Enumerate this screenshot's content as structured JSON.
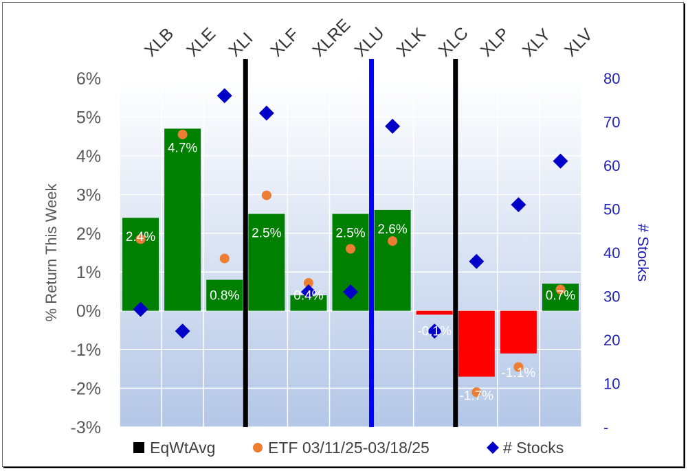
{
  "chart_data": {
    "type": "bar",
    "categories": [
      "XLB",
      "XLE",
      "XLI",
      "XLF",
      "XLRE",
      "XLU",
      "XLK",
      "XLC",
      "XLP",
      "XLY",
      "XLV"
    ],
    "series": [
      {
        "name": "EqWtAvg",
        "kind": "bar",
        "axis": "left",
        "values": [
          2.4,
          4.7,
          0.8,
          2.5,
          0.4,
          2.5,
          2.6,
          -0.1,
          -1.7,
          -1.1,
          0.7
        ],
        "labels": [
          "2.4%",
          "4.7%",
          "0.8%",
          "2.5%",
          "0.4%",
          "2.5%",
          "2.6%",
          "-0.1%",
          "-1.7%",
          "-1.1%",
          "0.7%"
        ],
        "color_positive": "#008000",
        "color_negative": "#ff0000"
      },
      {
        "name": "ETF 03/11/25-03/18/25",
        "kind": "marker-circle",
        "axis": "left",
        "values": [
          1.85,
          4.55,
          1.35,
          2.98,
          0.72,
          1.6,
          1.8,
          -0.55,
          -2.1,
          -1.45,
          0.55
        ],
        "color": "#ed7d31"
      },
      {
        "name": "# Stocks",
        "kind": "marker-diamond",
        "axis": "right",
        "values": [
          27,
          22,
          76,
          72,
          31,
          31,
          69,
          22,
          38,
          51,
          61
        ],
        "color": "#0000c8"
      }
    ],
    "ylabel": "% Return This Week",
    "y2label": "# Stocks",
    "ylim": [
      -3,
      6
    ],
    "y2lim": [
      0,
      80
    ],
    "yticks": [
      "6%",
      "5%",
      "4%",
      "3%",
      "2%",
      "1%",
      "0%",
      "-1%",
      "-2%",
      "-3%"
    ],
    "y2ticks": [
      "80",
      "70",
      "60",
      "50",
      "40",
      "30",
      "20",
      "10",
      "-"
    ],
    "separators": [
      {
        "after_category": "XLI",
        "color": "#000000"
      },
      {
        "after_category": "XLU",
        "color": "#0000ff"
      },
      {
        "after_category": "XLC",
        "color": "#000000"
      }
    ],
    "legend_position": "bottom",
    "grid": true,
    "plot_background": [
      "#ffffff",
      "#b4c7e7"
    ]
  }
}
